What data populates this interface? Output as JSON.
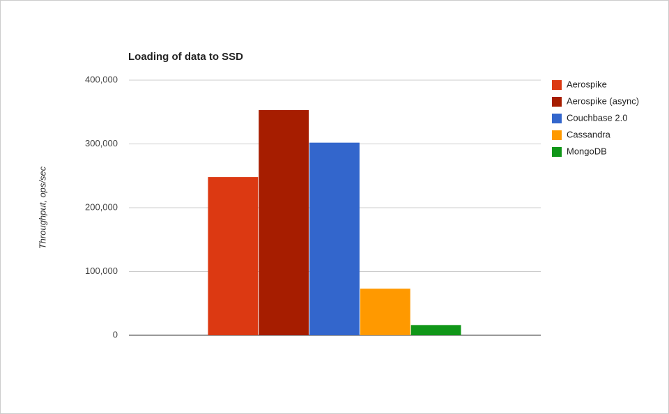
{
  "chart_data": {
    "type": "bar",
    "title": "Loading of data to SSD",
    "ylabel": "Throughput, ops/sec",
    "categories": [
      null
    ],
    "series": [
      {
        "name": "Aerospike",
        "color": "#dc3912",
        "values": [
          248000
        ]
      },
      {
        "name": "Aerospike (async)",
        "color": "#a61d00",
        "values": [
          353000
        ]
      },
      {
        "name": "Couchbase 2.0",
        "color": "#3366cc",
        "values": [
          302000
        ]
      },
      {
        "name": "Cassandra",
        "color": "#ff9900",
        "values": [
          73000
        ]
      },
      {
        "name": "MongoDB",
        "color": "#109618",
        "values": [
          16000
        ]
      }
    ],
    "ylim": [
      0,
      400000
    ],
    "yticks": [
      0,
      {
        "value": 100000,
        "label": "100,000"
      },
      {
        "value": 200000,
        "label": "200,000"
      },
      {
        "value": 300000,
        "label": "300,000"
      },
      {
        "value": 400000,
        "label": "400,000"
      }
    ],
    "grid": true,
    "legend": "right"
  }
}
